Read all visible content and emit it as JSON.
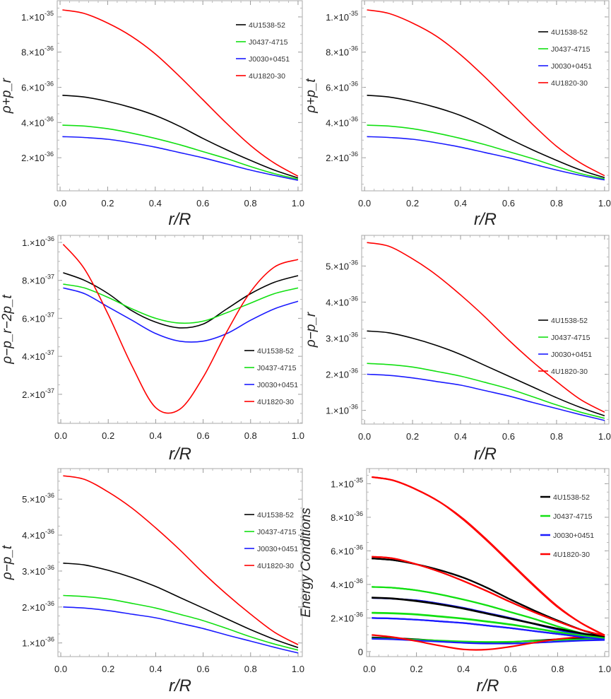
{
  "colors": {
    "4U1538-52": "#000000",
    "J0437-4715": "#12e012",
    "J0030+0451": "#1a1aff",
    "4U1820-30": "#ff0000"
  },
  "chart_data": [
    {
      "type": "line",
      "title": "",
      "xlabel": "r/R",
      "ylabel": "ρ+p_r",
      "ylabel_parts": {
        "base": "ρ+p",
        "sub": "r"
      },
      "xlim": [
        -0.012,
        1.018
      ],
      "ylim": [
        0.12,
        10.92
      ],
      "legend": "top-right",
      "xticks": [
        "0.0",
        "0.2",
        "0.4",
        "0.6",
        "0.8",
        "1.0"
      ],
      "yticks": [
        {
          "v": 2,
          "m": "2.",
          "e": "-36"
        },
        {
          "v": 4,
          "m": "4.",
          "e": "-36"
        },
        {
          "v": 6,
          "m": "6.",
          "e": "-36"
        },
        {
          "v": 8,
          "m": "8.",
          "e": "-36"
        },
        {
          "v": 10,
          "m": "1.",
          "e": "-35"
        }
      ],
      "y_unit": "1e-36",
      "x": [
        0.01,
        0.1,
        0.2,
        0.3,
        0.4,
        0.5,
        0.6,
        0.7,
        0.8,
        0.9,
        1.0
      ],
      "series": [
        {
          "name": "4U1538-52",
          "values": [
            5.55,
            5.45,
            5.2,
            4.85,
            4.4,
            3.8,
            3.1,
            2.45,
            1.85,
            1.3,
            0.85
          ]
        },
        {
          "name": "J0437-4715",
          "values": [
            3.85,
            3.8,
            3.65,
            3.4,
            3.1,
            2.75,
            2.35,
            1.95,
            1.5,
            1.1,
            0.78
          ]
        },
        {
          "name": "J0030+0451",
          "values": [
            3.2,
            3.15,
            3.05,
            2.85,
            2.6,
            2.3,
            2.0,
            1.65,
            1.3,
            1.0,
            0.72
          ]
        },
        {
          "name": "4U1820-30",
          "values": [
            10.4,
            10.2,
            9.65,
            8.9,
            7.9,
            6.65,
            5.3,
            3.95,
            2.7,
            1.7,
            0.95
          ]
        }
      ]
    },
    {
      "type": "line",
      "title": "",
      "xlabel": "r/R",
      "ylabel": "ρ+p_t",
      "ylabel_parts": {
        "base": "ρ+p",
        "sub": "t"
      },
      "xlim": [
        -0.012,
        1.018
      ],
      "ylim": [
        0.12,
        10.92
      ],
      "legend": "top-right",
      "xticks": [
        "0.0",
        "0.2",
        "0.4",
        "0.6",
        "0.8",
        "1.0"
      ],
      "yticks": [
        {
          "v": 2,
          "m": "2.",
          "e": "-36"
        },
        {
          "v": 4,
          "m": "4.",
          "e": "-36"
        },
        {
          "v": 6,
          "m": "6.",
          "e": "-36"
        },
        {
          "v": 8,
          "m": "8.",
          "e": "-36"
        },
        {
          "v": 10,
          "m": "1.",
          "e": "-35"
        }
      ],
      "y_unit": "1e-36",
      "x": [
        0.01,
        0.1,
        0.2,
        0.3,
        0.4,
        0.5,
        0.6,
        0.7,
        0.8,
        0.9,
        1.0
      ],
      "series": [
        {
          "name": "4U1538-52",
          "values": [
            5.55,
            5.45,
            5.2,
            4.85,
            4.4,
            3.8,
            3.1,
            2.45,
            1.85,
            1.3,
            0.87
          ]
        },
        {
          "name": "J0437-4715",
          "values": [
            3.85,
            3.8,
            3.65,
            3.4,
            3.1,
            2.75,
            2.35,
            1.95,
            1.5,
            1.1,
            0.8
          ]
        },
        {
          "name": "J0030+0451",
          "values": [
            3.2,
            3.15,
            3.05,
            2.85,
            2.6,
            2.3,
            2.0,
            1.65,
            1.3,
            1.0,
            0.74
          ]
        },
        {
          "name": "4U1820-30",
          "values": [
            10.4,
            10.2,
            9.65,
            8.9,
            7.85,
            6.6,
            5.25,
            3.9,
            2.65,
            1.7,
            0.98
          ]
        }
      ]
    },
    {
      "type": "line",
      "title": "",
      "xlabel": "r/R",
      "ylabel": "ρ−p_r−2p_t",
      "ylabel_parts": {
        "base": "ρ−p",
        "sub": "r",
        "mid": "−2p",
        "sub2": "t"
      },
      "xlim": [
        -0.012,
        1.018
      ],
      "ylim": [
        0.47,
        10.37
      ],
      "legend": "bottom-right",
      "xticks": [
        "0.0",
        "0.2",
        "0.4",
        "0.6",
        "0.8",
        "1.0"
      ],
      "yticks": [
        {
          "v": 2,
          "m": "2.",
          "e": "-37"
        },
        {
          "v": 4,
          "m": "4.",
          "e": "-37"
        },
        {
          "v": 6,
          "m": "6.",
          "e": "-37"
        },
        {
          "v": 8,
          "m": "8.",
          "e": "-37"
        },
        {
          "v": 10,
          "m": "1.",
          "e": "-36"
        }
      ],
      "y_unit": "1e-37",
      "x": [
        0.01,
        0.1,
        0.2,
        0.3,
        0.4,
        0.5,
        0.6,
        0.7,
        0.8,
        0.9,
        1.0
      ],
      "series": [
        {
          "name": "4U1538-52",
          "values": [
            8.4,
            8.0,
            7.3,
            6.4,
            5.8,
            5.5,
            5.7,
            6.5,
            7.3,
            7.9,
            8.25
          ]
        },
        {
          "name": "J0437-4715",
          "values": [
            7.8,
            7.6,
            7.1,
            6.5,
            6.0,
            5.75,
            5.85,
            6.3,
            6.8,
            7.3,
            7.6
          ]
        },
        {
          "name": "J0030+0451",
          "values": [
            7.6,
            7.3,
            6.6,
            5.9,
            5.2,
            4.8,
            4.8,
            5.2,
            5.9,
            6.5,
            6.9
          ]
        },
        {
          "name": "4U1820-30",
          "values": [
            9.9,
            8.6,
            6.2,
            3.5,
            1.3,
            1.2,
            2.9,
            5.3,
            7.4,
            8.7,
            9.1
          ]
        }
      ]
    },
    {
      "type": "line",
      "title": "",
      "xlabel": "r/R",
      "ylabel": "ρ−p_r",
      "ylabel_parts": {
        "base": "ρ−p",
        "sub": "r"
      },
      "xlim": [
        -0.012,
        1.018
      ],
      "ylim": [
        0.62,
        5.85
      ],
      "legend": "right",
      "xticks": [
        "0.0",
        "0.2",
        "0.4",
        "0.6",
        "0.8",
        "1.0"
      ],
      "yticks": [
        {
          "v": 1,
          "m": "1.",
          "e": "-36"
        },
        {
          "v": 2,
          "m": "2.",
          "e": "-36"
        },
        {
          "v": 3,
          "m": "3.",
          "e": "-36"
        },
        {
          "v": 4,
          "m": "4.",
          "e": "-36"
        },
        {
          "v": 5,
          "m": "5.",
          "e": "-36"
        }
      ],
      "y_unit": "1e-36",
      "x": [
        0.01,
        0.1,
        0.2,
        0.3,
        0.4,
        0.5,
        0.6,
        0.7,
        0.8,
        0.9,
        1.0
      ],
      "series": [
        {
          "name": "4U1538-52",
          "values": [
            3.2,
            3.15,
            3.0,
            2.8,
            2.55,
            2.25,
            1.95,
            1.65,
            1.35,
            1.08,
            0.85
          ]
        },
        {
          "name": "J0437-4715",
          "values": [
            2.3,
            2.27,
            2.2,
            2.08,
            1.95,
            1.78,
            1.6,
            1.38,
            1.15,
            0.95,
            0.78
          ]
        },
        {
          "name": "J0030+0451",
          "values": [
            2.0,
            1.97,
            1.9,
            1.8,
            1.7,
            1.55,
            1.4,
            1.22,
            1.05,
            0.88,
            0.72
          ]
        },
        {
          "name": "4U1820-30",
          "values": [
            5.65,
            5.55,
            5.2,
            4.75,
            4.2,
            3.6,
            2.95,
            2.35,
            1.8,
            1.3,
            0.95
          ]
        }
      ]
    },
    {
      "type": "line",
      "title": "",
      "xlabel": "r/R",
      "ylabel": "ρ−p_t",
      "ylabel_parts": {
        "base": "ρ−p",
        "sub": "t"
      },
      "xlim": [
        -0.012,
        1.018
      ],
      "ylim": [
        0.62,
        5.85
      ],
      "legend": "right",
      "xticks": [
        "0.0",
        "0.2",
        "0.4",
        "0.6",
        "0.8",
        "1.0"
      ],
      "yticks": [
        {
          "v": 1,
          "m": "1.",
          "e": "-36"
        },
        {
          "v": 2,
          "m": "2.",
          "e": "-36"
        },
        {
          "v": 3,
          "m": "3.",
          "e": "-36"
        },
        {
          "v": 4,
          "m": "4.",
          "e": "-36"
        },
        {
          "v": 5,
          "m": "5.",
          "e": "-36"
        }
      ],
      "y_unit": "1e-36",
      "x": [
        0.01,
        0.1,
        0.2,
        0.3,
        0.4,
        0.5,
        0.6,
        0.7,
        0.8,
        0.9,
        1.0
      ],
      "series": [
        {
          "name": "4U1538-52",
          "values": [
            3.22,
            3.17,
            3.02,
            2.82,
            2.57,
            2.27,
            1.97,
            1.67,
            1.37,
            1.1,
            0.87
          ]
        },
        {
          "name": "J0437-4715",
          "values": [
            2.32,
            2.29,
            2.22,
            2.1,
            1.97,
            1.8,
            1.62,
            1.4,
            1.17,
            0.97,
            0.8
          ]
        },
        {
          "name": "J0030+0451",
          "values": [
            2.0,
            1.97,
            1.9,
            1.8,
            1.7,
            1.55,
            1.4,
            1.22,
            1.05,
            0.88,
            0.72
          ]
        },
        {
          "name": "4U1820-30",
          "values": [
            5.65,
            5.55,
            5.2,
            4.75,
            4.2,
            3.6,
            2.95,
            2.35,
            1.8,
            1.3,
            0.95
          ]
        }
      ]
    },
    {
      "type": "line",
      "title": "",
      "xlabel": "r/R",
      "ylabel": "Energy Conditions",
      "ylabel_parts": {
        "base": "Energy Conditions"
      },
      "xlim": [
        -0.012,
        1.018
      ],
      "ylim": [
        -0.3,
        10.9
      ],
      "legend": "top-right",
      "xticks": [
        "0.0",
        "0.2",
        "0.4",
        "0.6",
        "0.8",
        "1.0"
      ],
      "yticks": [
        {
          "v": 0,
          "m": "0",
          "e": ""
        },
        {
          "v": 2,
          "m": "2.",
          "e": "-36"
        },
        {
          "v": 4,
          "m": "4.",
          "e": "-36"
        },
        {
          "v": 6,
          "m": "6.",
          "e": "-36"
        },
        {
          "v": 8,
          "m": "8.",
          "e": "-36"
        },
        {
          "v": 10,
          "m": "1.",
          "e": "-35"
        }
      ],
      "y_unit": "1e-36",
      "combined_from_panels": [
        0,
        1,
        2,
        3,
        4
      ],
      "series": [
        {
          "name": "4U1538-52"
        },
        {
          "name": "J0437-4715"
        },
        {
          "name": "J0030+0451"
        },
        {
          "name": "4U1820-30"
        }
      ]
    }
  ]
}
